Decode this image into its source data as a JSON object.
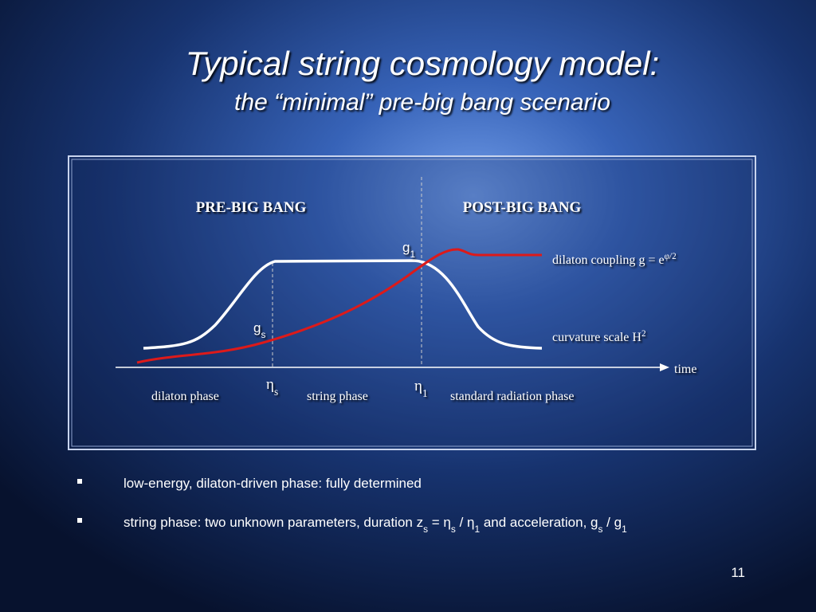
{
  "header": {
    "title": "Typical string cosmology model:",
    "subtitle": "the “minimal” pre-big bang scenario"
  },
  "diagram": {
    "left_heading": "PRE-BIG BANG",
    "right_heading": "POST-BIG BANG",
    "marks": [
      [
        {
          "t": "g"
        },
        {
          "sub": "1"
        }
      ],
      [
        {
          "t": "g"
        },
        {
          "sub": "s"
        }
      ],
      [
        {
          "t": "η"
        },
        {
          "sub": "s"
        }
      ],
      [
        {
          "t": "η"
        },
        {
          "sub": "1"
        }
      ]
    ],
    "curve_labels": [
      [
        {
          "t": "dilaton coupling "
        },
        {
          "t": "g = e"
        },
        {
          "sup": "φ/2"
        }
      ],
      [
        {
          "t": "curvature scale "
        },
        {
          "t": "H"
        },
        {
          "sup": "2"
        }
      ]
    ],
    "axis_label": "time",
    "phases": [
      "dilaton phase",
      "string phase",
      "standard radiation phase"
    ]
  },
  "bullets": [
    [
      {
        "t": "low-energy, dilaton-driven phase: fully determined"
      }
    ],
    [
      {
        "t": "string phase: two unknown parameters, duration   z"
      },
      {
        "sub": "s"
      },
      {
        "t": " = η"
      },
      {
        "sub": "s"
      },
      {
        "t": " / η"
      },
      {
        "sub": "1"
      },
      {
        "t": "   and acceleration, g"
      },
      {
        "sub": "s"
      },
      {
        "t": " / g"
      },
      {
        "sub": "1"
      }
    ]
  ],
  "page_number": "11"
}
